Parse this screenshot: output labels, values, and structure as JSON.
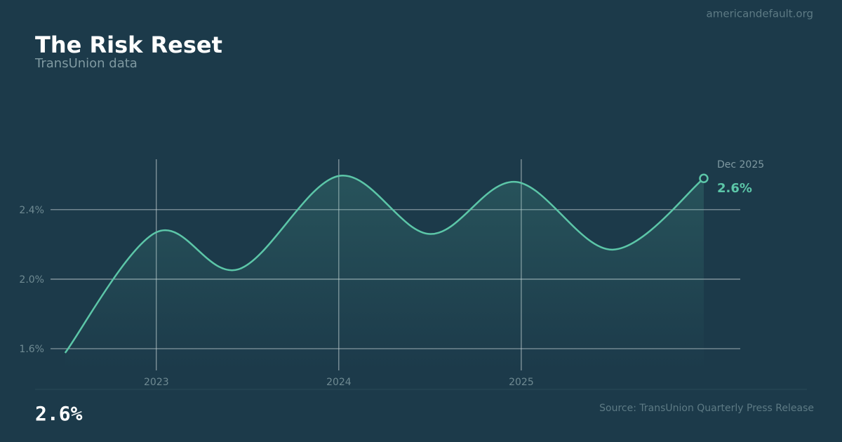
{
  "site": "americandefault.org",
  "chart_data": {
    "type": "line",
    "title": "The Risk Reset",
    "subtitle": "TransUnion data",
    "x": [
      2022.5,
      2023.0,
      2023.45,
      2024.0,
      2024.5,
      2024.97,
      2025.5,
      2026.0
    ],
    "series": [
      {
        "color": "#5cc6a8",
        "values": [
          1.576,
          2.27,
          2.057,
          2.594,
          2.26,
          2.56,
          2.17,
          2.58
        ]
      }
    ],
    "xlim": [
      2022.42,
      2026.2
    ],
    "xticks": [
      2023,
      2024,
      2025
    ],
    "ylim": [
      1.475,
      2.69
    ],
    "yticks": [
      {
        "value": 1.6,
        "label": "1.6%"
      },
      {
        "value": 2.0,
        "label": "2.0%"
      },
      {
        "value": 2.4,
        "label": "2.4%"
      }
    ],
    "grid": true,
    "end_annotation": {
      "date": "Dec 2025",
      "value": "2.6%"
    },
    "headline_value": "2.6%",
    "source": "Source: TransUnion Quarterly Press Release"
  }
}
